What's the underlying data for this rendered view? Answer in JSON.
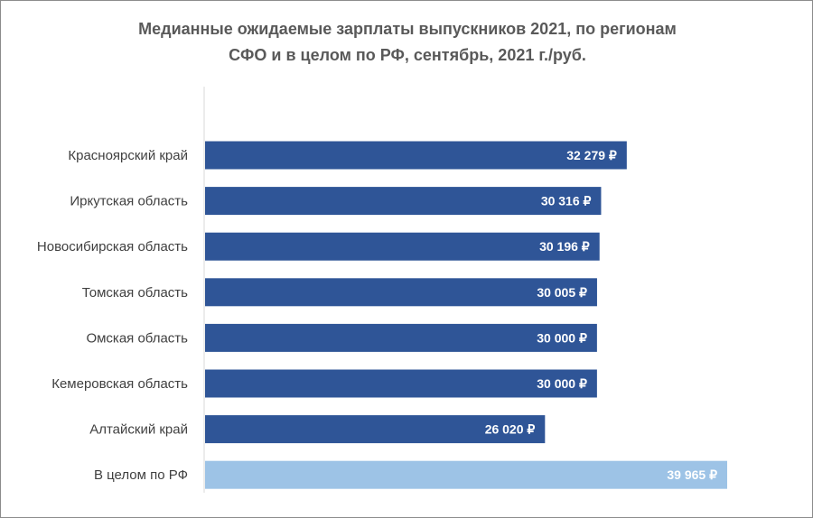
{
  "chart_data": {
    "type": "bar",
    "orientation": "horizontal",
    "title_lines": [
      "Медианные ожидаемые зарплаты выпускников 2021, по регионам",
      "СФО и в целом по РФ, сентябрь, 2021 г./руб."
    ],
    "categories": [
      "Красноярский край",
      "Иркутская область",
      "Новосибирская область",
      "Томская область",
      "Омская область",
      "Кемеровская область",
      "Алтайский край",
      "В целом по РФ"
    ],
    "values": [
      32279,
      30316,
      30196,
      30005,
      30000,
      30000,
      26020,
      39965
    ],
    "labels": [
      "32 279 ₽",
      "30 316 ₽",
      "30 196 ₽",
      "30 005 ₽",
      "30 000 ₽",
      "30 000 ₽",
      "26 020 ₽",
      "39 965 ₽"
    ],
    "colors": [
      "#2F5597",
      "#2F5597",
      "#2F5597",
      "#2F5597",
      "#2F5597",
      "#2F5597",
      "#2F5597",
      "#9DC3E6"
    ],
    "xlim": [
      0,
      62000
    ],
    "grid": false,
    "legend": "none",
    "xlabel": "",
    "ylabel": ""
  }
}
